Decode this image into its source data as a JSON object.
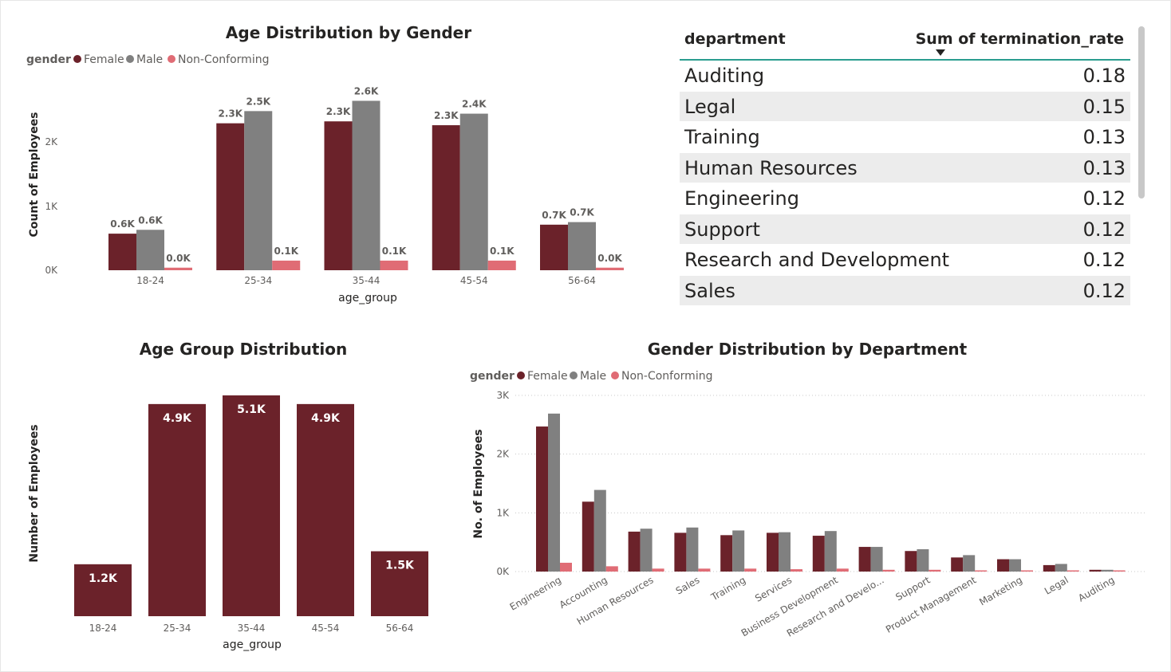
{
  "charts": {
    "age_gender": {
      "title": "Age Distribution by Gender",
      "legend_title": "gender",
      "legend": [
        "Female",
        "Male",
        "Non-Conforming"
      ],
      "ylabel": "Count of Employees",
      "xlabel": "age_group",
      "yticks": [
        "0K",
        "1K",
        "2K"
      ]
    },
    "age_group": {
      "title": "Age Group Distribution",
      "ylabel": "Number of Employees",
      "xlabel": "age_group"
    },
    "dept_gender": {
      "title": "Gender Distribution by Department",
      "legend_title": "gender",
      "legend": [
        "Female",
        "Male",
        "Non-Conforming"
      ],
      "ylabel": "No. of Employees",
      "yticks": [
        "0K",
        "1K",
        "2K",
        "3K"
      ]
    }
  },
  "table": {
    "columns": [
      "department",
      "Sum of termination_rate"
    ],
    "rows": [
      {
        "department": "Auditing",
        "value": "0.18"
      },
      {
        "department": "Legal",
        "value": "0.15"
      },
      {
        "department": "Training",
        "value": "0.13"
      },
      {
        "department": "Human Resources",
        "value": "0.13"
      },
      {
        "department": "Engineering",
        "value": "0.12"
      },
      {
        "department": "Support",
        "value": "0.12"
      },
      {
        "department": "Research and Development",
        "value": "0.12"
      },
      {
        "department": "Sales",
        "value": "0.12"
      }
    ]
  },
  "colors": {
    "female": "#6b222a",
    "male": "#808080",
    "nonconforming": "#e06c75",
    "single": "#6b222a"
  },
  "chart_data": [
    {
      "type": "bar",
      "title": "Age Distribution by Gender",
      "xlabel": "age_group",
      "ylabel": "Count of Employees",
      "categories": [
        "18-24",
        "25-34",
        "35-44",
        "45-54",
        "56-64"
      ],
      "ylim": [
        0,
        2900
      ],
      "series": [
        {
          "name": "Female",
          "values": [
            570,
            2290,
            2320,
            2260,
            710
          ],
          "labels": [
            "0.6K",
            "2.3K",
            "2.3K",
            "2.3K",
            "0.7K"
          ]
        },
        {
          "name": "Male",
          "values": [
            630,
            2480,
            2640,
            2440,
            750
          ],
          "labels": [
            "0.6K",
            "2.5K",
            "2.6K",
            "2.4K",
            "0.7K"
          ]
        },
        {
          "name": "Non-Conforming",
          "values": [
            40,
            150,
            150,
            150,
            40
          ],
          "labels": [
            "0.0K",
            "0.1K",
            "0.1K",
            "0.1K",
            "0.0K"
          ]
        }
      ],
      "legend": "top-left"
    },
    {
      "type": "bar",
      "title": "Age Group Distribution",
      "xlabel": "age_group",
      "ylabel": "Number of Employees",
      "categories": [
        "18-24",
        "25-34",
        "35-44",
        "45-54",
        "56-64"
      ],
      "values": [
        1200,
        4900,
        5100,
        4900,
        1500
      ],
      "labels": [
        "1.2K",
        "4.9K",
        "5.1K",
        "4.9K",
        "1.5K"
      ]
    },
    {
      "type": "bar",
      "title": "Gender Distribution by Department",
      "ylabel": "No. of Employees",
      "categories": [
        "Engineering",
        "Accounting",
        "Human Resources",
        "Sales",
        "Training",
        "Services",
        "Business Development",
        "Research and Develo...",
        "Support",
        "Product Management",
        "Marketing",
        "Legal",
        "Auditing"
      ],
      "ylim": [
        0,
        3000
      ],
      "grid": true,
      "series": [
        {
          "name": "Female",
          "values": [
            2470,
            1190,
            680,
            660,
            620,
            660,
            610,
            420,
            350,
            240,
            210,
            110,
            30
          ]
        },
        {
          "name": "Male",
          "values": [
            2690,
            1390,
            730,
            750,
            700,
            670,
            690,
            420,
            380,
            280,
            210,
            130,
            30
          ]
        },
        {
          "name": "Non-Conforming",
          "values": [
            150,
            90,
            50,
            50,
            50,
            40,
            50,
            30,
            30,
            20,
            20,
            20,
            10
          ]
        }
      ],
      "legend": "top-left"
    }
  ]
}
